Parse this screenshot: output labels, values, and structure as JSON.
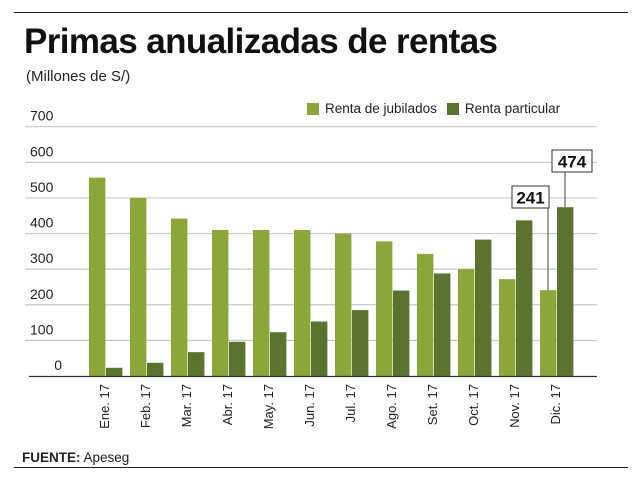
{
  "chart_data": {
    "type": "bar",
    "title": "Primas anualizadas de rentas",
    "subtitle": "(Millones de S/)",
    "xlabel": "",
    "ylabel": "",
    "ylim": [
      0,
      700
    ],
    "yticks": [
      0,
      100,
      200,
      300,
      400,
      500,
      600,
      700
    ],
    "grid": true,
    "legend_position": "top-right",
    "categories": [
      "Ene. 17",
      "Feb. 17",
      "Mar. 17",
      "Abr. 17",
      "May. 17",
      "Jun. 17",
      "Jul. 17",
      "Ago. 17",
      "Set. 17",
      "Oct. 17",
      "Nov. 17",
      "Dic. 17"
    ],
    "series": [
      {
        "name": "Renta de jubilados",
        "color": "#8ca63a",
        "values": [
          557,
          500,
          442,
          410,
          410,
          410,
          400,
          378,
          343,
          300,
          272,
          241
        ]
      },
      {
        "name": "Renta particular",
        "color": "#5a7430",
        "values": [
          23,
          37,
          67,
          96,
          123,
          153,
          185,
          240,
          288,
          383,
          437,
          474
        ]
      }
    ],
    "annotations": [
      {
        "label": "241",
        "category": "Dic. 17",
        "series": "Renta de jubilados",
        "value": 241
      },
      {
        "label": "474",
        "category": "Dic. 17",
        "series": "Renta particular",
        "value": 474
      }
    ],
    "source_label": "FUENTE:",
    "source_value": "Apeseg"
  }
}
